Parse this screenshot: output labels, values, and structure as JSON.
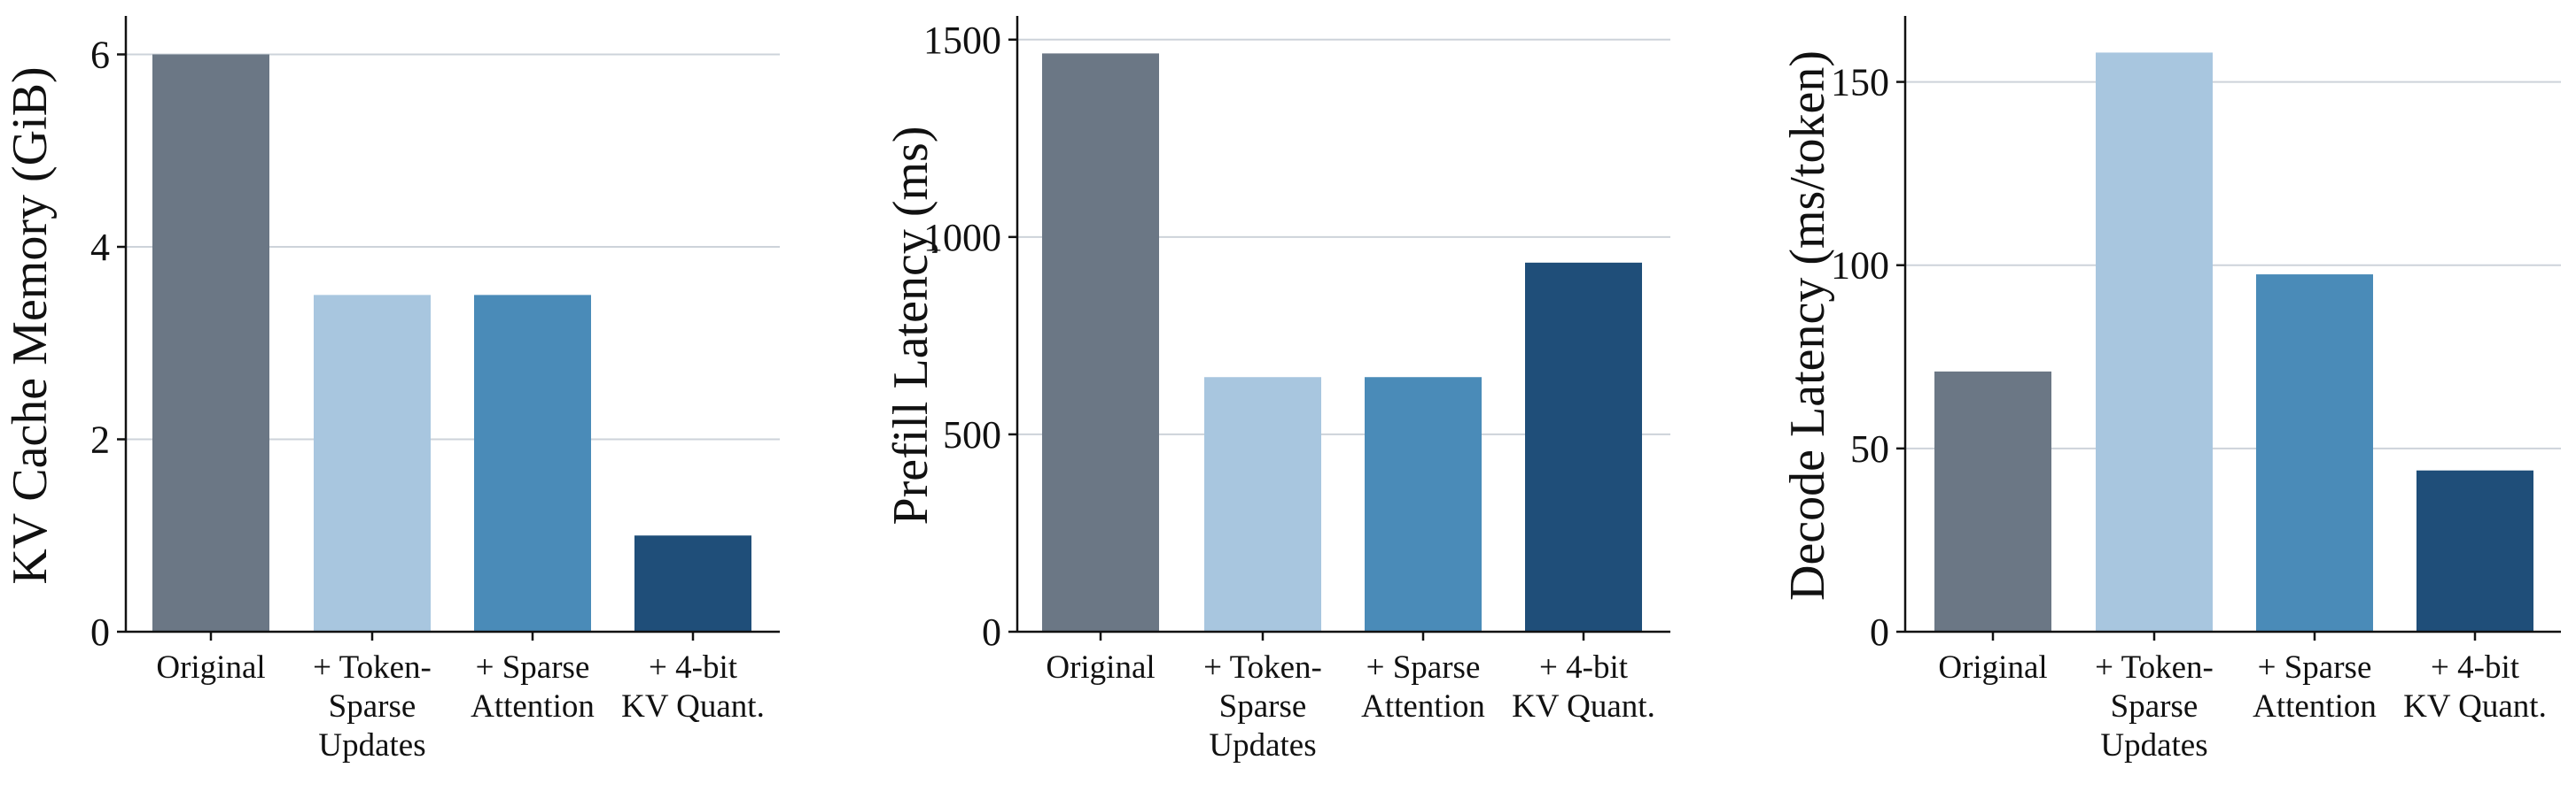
{
  "figure": {
    "categories": [
      [
        "Original"
      ],
      [
        "+ Token-",
        "Sparse",
        "Updates"
      ],
      [
        "+ Sparse",
        "Attention"
      ],
      [
        "+ 4-bit",
        "KV Quant."
      ]
    ],
    "bar_colors": [
      "#6b7785",
      "#a8c6df",
      "#4a8bb8",
      "#1f4e79"
    ]
  },
  "chart_data": [
    {
      "type": "bar",
      "ylabel": "KV Cache Memory (GiB)",
      "ylim": [
        0,
        6.4
      ],
      "yticks": [
        0,
        2,
        4,
        6
      ],
      "ytick_labels": [
        "0",
        "2",
        "4",
        "6"
      ],
      "grid": true,
      "values": [
        6.0,
        3.5,
        3.5,
        1.0
      ]
    },
    {
      "type": "bar",
      "ylabel": "Prefill Latency (ms)",
      "ylim": [
        0,
        1560
      ],
      "yticks": [
        0,
        500,
        1000,
        1500
      ],
      "ytick_labels": [
        "0",
        "500",
        "1000",
        "1500"
      ],
      "grid": true,
      "values": [
        1465,
        645,
        645,
        935
      ]
    },
    {
      "type": "bar",
      "ylabel": "Decode Latency (ms/token)",
      "ylim": [
        0,
        168
      ],
      "yticks": [
        0,
        50,
        100,
        150
      ],
      "ytick_labels": [
        "0",
        "50",
        "100",
        "150"
      ],
      "grid": true,
      "values": [
        71,
        158,
        97.5,
        44
      ]
    }
  ]
}
